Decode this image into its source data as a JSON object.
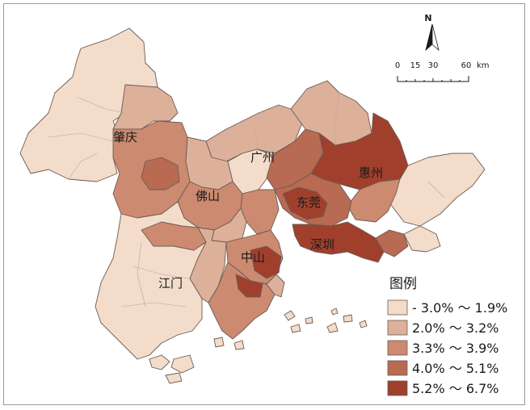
{
  "map": {
    "cities": [
      {
        "id": "zhaoqing",
        "label": "肇庆"
      },
      {
        "id": "guangzhou",
        "label": "广州"
      },
      {
        "id": "foshan",
        "label": "佛山"
      },
      {
        "id": "huizhou",
        "label": "惠州"
      },
      {
        "id": "dongguan",
        "label": "东莞"
      },
      {
        "id": "shenzhen",
        "label": "深圳"
      },
      {
        "id": "zhongshan",
        "label": "中山"
      },
      {
        "id": "jiangmen",
        "label": "江门"
      }
    ],
    "north_arrow": {
      "label": "N"
    },
    "scale_bar": {
      "ticks": [
        "0",
        "15",
        "30",
        "60"
      ],
      "unit": "km"
    }
  },
  "legend": {
    "title": "图例",
    "classes": [
      {
        "label": "- 3.0% ～ 1.9%",
        "color": "#f3dcc9"
      },
      {
        "label": "2.0% ～ 3.2%",
        "color": "#ddb09a"
      },
      {
        "label": "3.3% ～ 3.9%",
        "color": "#cc8a70"
      },
      {
        "label": "4.0% ～ 5.1%",
        "color": "#b86a52"
      },
      {
        "label": "5.2% ～ 6.7%",
        "color": "#a0402c"
      }
    ]
  }
}
